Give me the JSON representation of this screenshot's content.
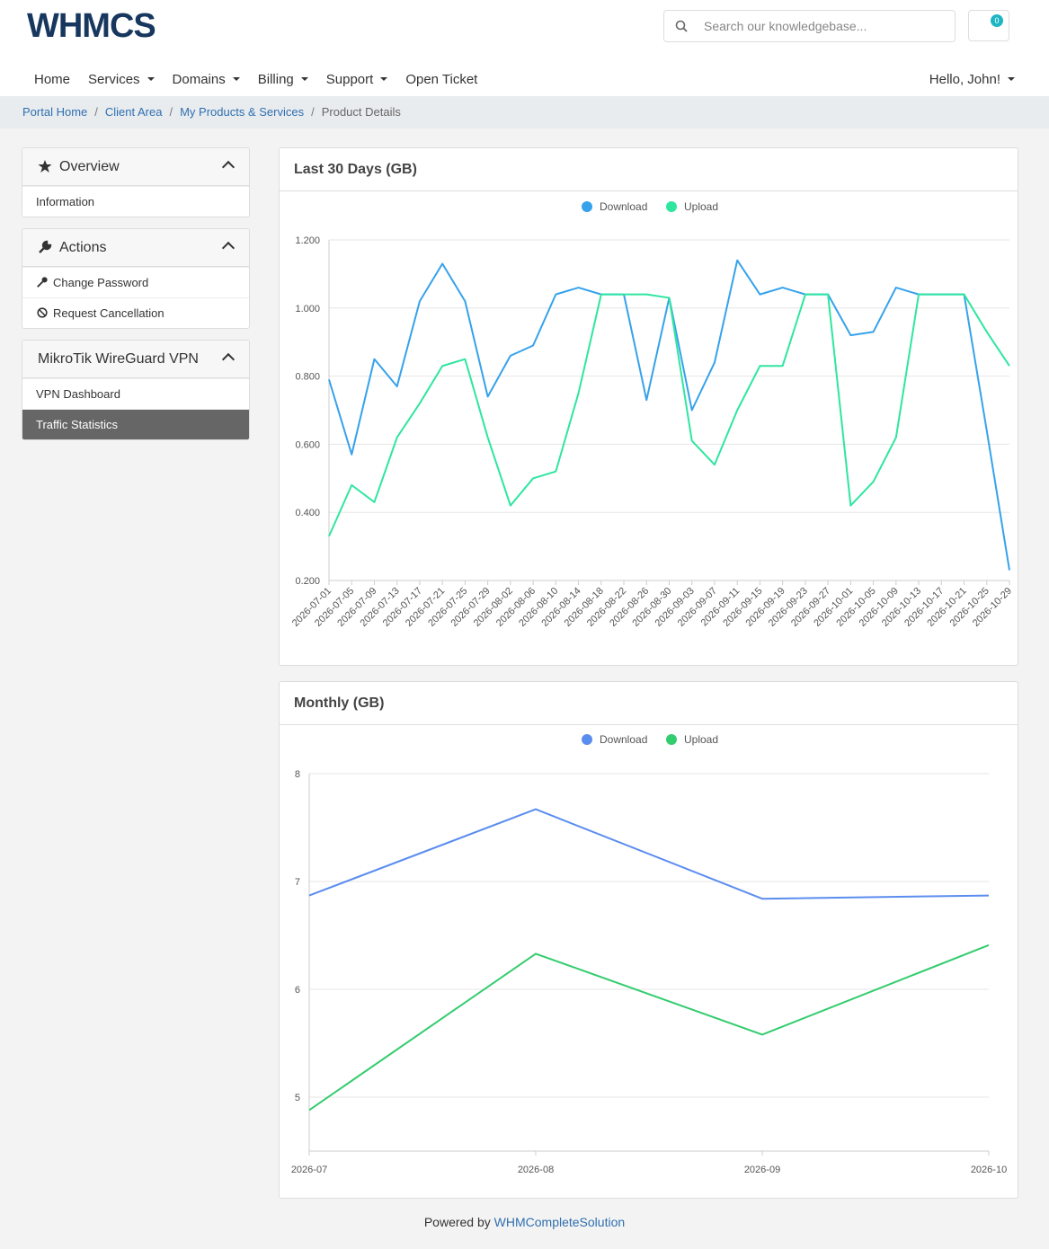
{
  "header": {
    "logo": "WHMCS",
    "search_placeholder": "Search our knowledgebase...",
    "cart_count": "0"
  },
  "nav": [
    {
      "label": "Home"
    },
    {
      "label": "Services",
      "dropdown": true
    },
    {
      "label": "Domains",
      "dropdown": true
    },
    {
      "label": "Billing",
      "dropdown": true
    },
    {
      "label": "Support",
      "dropdown": true
    },
    {
      "label": "Open Ticket"
    }
  ],
  "user_menu": {
    "label": "Hello, John!",
    "dropdown": true
  },
  "breadcrumb": [
    "Portal Home",
    "Client Area",
    "My Products & Services",
    "Product Details"
  ],
  "sidebar": [
    {
      "title": "Overview",
      "icon": "star",
      "items": [
        {
          "label": "Information"
        }
      ]
    },
    {
      "title": "Actions",
      "icon": "wrench",
      "items": [
        {
          "label": "Change Password",
          "icon": "key"
        },
        {
          "label": "Request Cancellation",
          "icon": "ban"
        }
      ]
    },
    {
      "title": "MikroTik WireGuard VPN",
      "items": [
        {
          "label": "VPN Dashboard"
        },
        {
          "label": "Traffic Statistics",
          "active": true
        }
      ]
    }
  ],
  "chart_data": [
    {
      "type": "line",
      "title": "Last 30 Days (GB)",
      "categories": [
        "2026-07-01",
        "2026-07-05",
        "2026-07-09",
        "2026-07-13",
        "2026-07-17",
        "2026-07-21",
        "2026-07-25",
        "2026-07-29",
        "2026-08-02",
        "2026-08-06",
        "2026-08-10",
        "2026-08-14",
        "2026-08-18",
        "2026-08-22",
        "2026-08-26",
        "2026-08-30",
        "2026-09-03",
        "2026-09-07",
        "2026-09-11",
        "2026-09-15",
        "2026-09-19",
        "2026-09-23",
        "2026-09-27",
        "2026-10-01",
        "2026-10-05",
        "2026-10-09",
        "2026-10-13",
        "2026-10-17",
        "2026-10-21",
        "2026-10-25",
        "2026-10-29"
      ],
      "series": [
        {
          "name": "Download",
          "color": "#36a2eb",
          "values": [
            0.79,
            0.57,
            0.85,
            0.77,
            1.02,
            1.13,
            1.02,
            0.74,
            0.86,
            0.89,
            1.04,
            1.06,
            1.04,
            1.04,
            0.73,
            1.03,
            0.7,
            0.84,
            1.14,
            1.04,
            1.06,
            1.04,
            1.04,
            0.92,
            0.93,
            1.06,
            1.04,
            1.04,
            1.04,
            0.64,
            0.23
          ]
        },
        {
          "name": "Upload",
          "color": "#2ee6a0",
          "values": [
            0.33,
            0.48,
            0.43,
            0.62,
            0.72,
            0.83,
            0.85,
            0.62,
            0.42,
            0.5,
            0.52,
            0.75,
            1.04,
            1.04,
            1.04,
            1.03,
            0.61,
            0.54,
            0.7,
            0.83,
            0.83,
            1.04,
            1.04,
            0.42,
            0.49,
            0.62,
            1.04,
            1.04,
            1.04,
            0.93,
            0.83
          ]
        }
      ],
      "ylim": [
        0.2,
        1.2
      ],
      "yticks": [
        {
          "value": 0.2,
          "label": "0.200"
        },
        {
          "value": 0.4,
          "label": "0.400"
        },
        {
          "value": 0.6,
          "label": "0.600"
        },
        {
          "value": 0.8,
          "label": "0.800"
        },
        {
          "value": 1.0,
          "label": "1.000"
        },
        {
          "value": 1.2,
          "label": "1.200"
        }
      ],
      "grid": true,
      "legend": "top"
    },
    {
      "type": "line",
      "title": "Monthly (GB)",
      "categories": [
        "2026-07",
        "2026-08",
        "2026-09",
        "2026-10"
      ],
      "series": [
        {
          "name": "Download",
          "color": "#5b8def",
          "values": [
            6.87,
            7.67,
            6.84,
            6.87
          ]
        },
        {
          "name": "Upload",
          "color": "#33cc6e",
          "values": [
            4.88,
            6.33,
            5.58,
            6.41
          ]
        }
      ],
      "ylim": [
        4.5,
        8
      ],
      "yticks": [
        5,
        6,
        7,
        8
      ],
      "grid": true,
      "legend": "top"
    }
  ],
  "footer": {
    "text": "Powered by",
    "link": "WHMCompleteSolution"
  }
}
